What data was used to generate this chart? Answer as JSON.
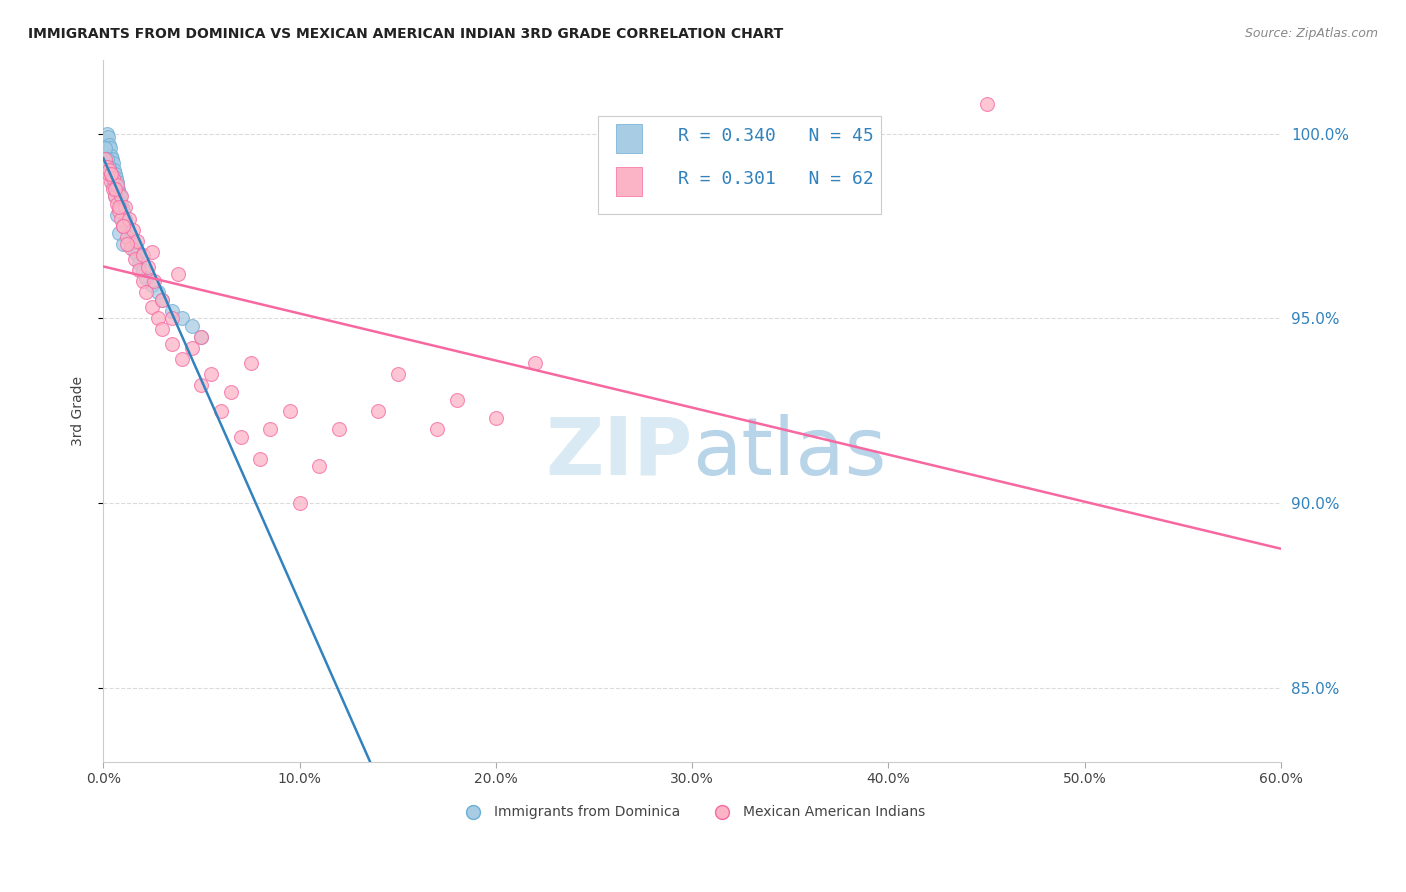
{
  "title": "IMMIGRANTS FROM DOMINICA VS MEXICAN AMERICAN INDIAN 3RD GRADE CORRELATION CHART",
  "source": "Source: ZipAtlas.com",
  "ylabel": "3rd Grade",
  "x_tick_labels": [
    "0.0%",
    "10.0%",
    "20.0%",
    "30.0%",
    "40.0%",
    "50.0%",
    "60.0%"
  ],
  "x_tick_values": [
    0,
    10,
    20,
    30,
    40,
    50,
    60
  ],
  "y_tick_labels": [
    "85.0%",
    "90.0%",
    "95.0%",
    "100.0%"
  ],
  "y_tick_values": [
    85,
    90,
    95,
    100
  ],
  "xlim": [
    0,
    60
  ],
  "ylim": [
    83,
    102
  ],
  "legend_label1": "Immigrants from Dominica",
  "legend_label2": "Mexican American Indians",
  "R1": 0.34,
  "N1": 45,
  "R2": 0.301,
  "N2": 62,
  "color_blue": "#a8cce4",
  "color_blue_edge": "#6baed6",
  "color_blue_line": "#3182bd",
  "color_pink": "#fbb4c6",
  "color_pink_edge": "#f768a1",
  "color_pink_line": "#f768a1",
  "color_text_blue": "#3182bd",
  "color_right_axis": "#3182bd",
  "watermark_zip": "#daeaf5",
  "watermark_atlas": "#b8d4e8",
  "background": "#ffffff",
  "grid_color": "#cccccc",
  "blue_scatter_x": [
    0.1,
    0.15,
    0.2,
    0.25,
    0.3,
    0.35,
    0.4,
    0.45,
    0.5,
    0.55,
    0.6,
    0.65,
    0.7,
    0.75,
    0.8,
    0.85,
    0.9,
    0.95,
    1.0,
    1.1,
    1.2,
    1.3,
    1.4,
    1.5,
    1.6,
    1.7,
    1.8,
    2.0,
    2.2,
    2.5,
    2.8,
    3.0,
    3.5,
    4.0,
    4.5,
    5.0,
    0.1,
    0.2,
    0.3,
    0.4,
    0.5,
    0.6,
    0.7,
    0.8,
    1.0
  ],
  "blue_scatter_y": [
    99.5,
    99.8,
    100.0,
    99.9,
    99.7,
    99.6,
    99.4,
    99.3,
    99.2,
    99.0,
    98.9,
    98.8,
    98.7,
    98.5,
    98.4,
    98.3,
    98.1,
    98.0,
    97.9,
    97.7,
    97.5,
    97.3,
    97.1,
    97.0,
    96.8,
    96.7,
    96.5,
    96.3,
    96.1,
    95.9,
    95.7,
    95.5,
    95.2,
    95.0,
    94.8,
    94.5,
    99.6,
    99.3,
    99.1,
    98.9,
    98.6,
    98.3,
    97.8,
    97.3,
    97.0
  ],
  "pink_scatter_x": [
    0.1,
    0.2,
    0.3,
    0.4,
    0.5,
    0.6,
    0.7,
    0.8,
    0.9,
    1.0,
    1.2,
    1.4,
    1.6,
    1.8,
    2.0,
    2.2,
    2.5,
    2.8,
    3.0,
    3.5,
    4.0,
    5.0,
    6.0,
    7.0,
    8.0,
    10.0,
    12.0,
    15.0,
    18.0,
    20.0,
    0.3,
    0.5,
    0.7,
    0.9,
    1.1,
    1.3,
    1.5,
    1.7,
    2.0,
    2.3,
    2.6,
    3.0,
    3.5,
    4.5,
    5.5,
    6.5,
    8.5,
    11.0,
    14.0,
    17.0,
    0.4,
    0.6,
    0.8,
    1.0,
    1.2,
    2.5,
    3.8,
    22.0,
    45.0,
    5.0,
    7.5,
    9.5
  ],
  "pink_scatter_y": [
    99.3,
    99.1,
    98.9,
    98.7,
    98.5,
    98.3,
    98.1,
    97.9,
    97.7,
    97.5,
    97.2,
    96.9,
    96.6,
    96.3,
    96.0,
    95.7,
    95.3,
    95.0,
    94.7,
    94.3,
    93.9,
    93.2,
    92.5,
    91.8,
    91.2,
    90.0,
    92.0,
    93.5,
    92.8,
    92.3,
    99.0,
    98.8,
    98.6,
    98.3,
    98.0,
    97.7,
    97.4,
    97.1,
    96.7,
    96.4,
    96.0,
    95.5,
    95.0,
    94.2,
    93.5,
    93.0,
    92.0,
    91.0,
    92.5,
    92.0,
    98.9,
    98.5,
    98.0,
    97.5,
    97.0,
    96.8,
    96.2,
    93.8,
    100.8,
    94.5,
    93.8,
    92.5
  ]
}
